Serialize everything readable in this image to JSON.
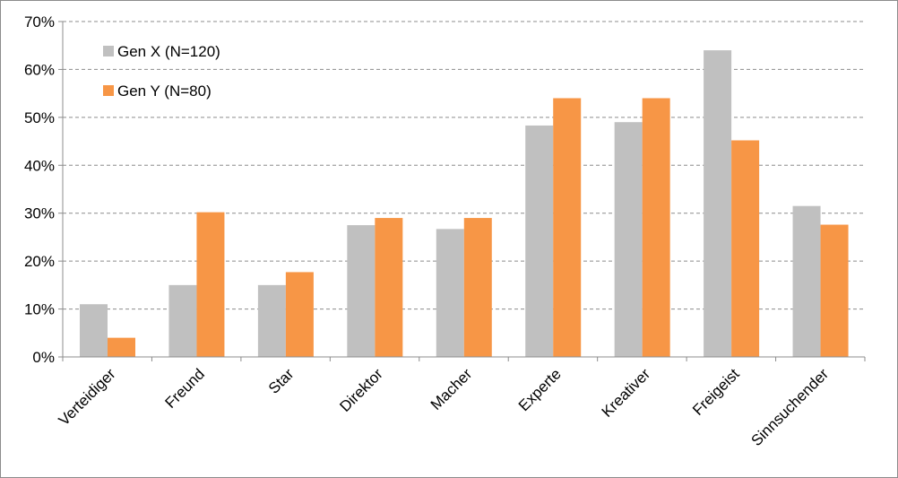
{
  "chart_data": {
    "type": "bar",
    "title": "",
    "xlabel": "",
    "ylabel": "",
    "categories": [
      "Verteidiger",
      "Freund",
      "Star",
      "Direktor",
      "Macher",
      "Experte",
      "Kreativer",
      "Freigeist",
      "Sinnsuchender"
    ],
    "series": [
      {
        "name": "Gen X (N=120)",
        "color": "#c0c0c0",
        "values": [
          11,
          15,
          15,
          27.5,
          26.7,
          48.3,
          49,
          64,
          31.5
        ]
      },
      {
        "name": "Gen Y (N=80)",
        "color": "#f79646",
        "values": [
          4,
          30.2,
          17.7,
          29,
          29,
          54,
          54,
          45.2,
          27.6
        ]
      }
    ],
    "ylim": [
      0,
      70
    ],
    "yticks": [
      0,
      10,
      20,
      30,
      40,
      50,
      60,
      70
    ],
    "ytick_labels": [
      "0%",
      "10%",
      "20%",
      "30%",
      "40%",
      "50%",
      "60%",
      "70%"
    ],
    "grid": true,
    "legend_position": "top-left"
  }
}
